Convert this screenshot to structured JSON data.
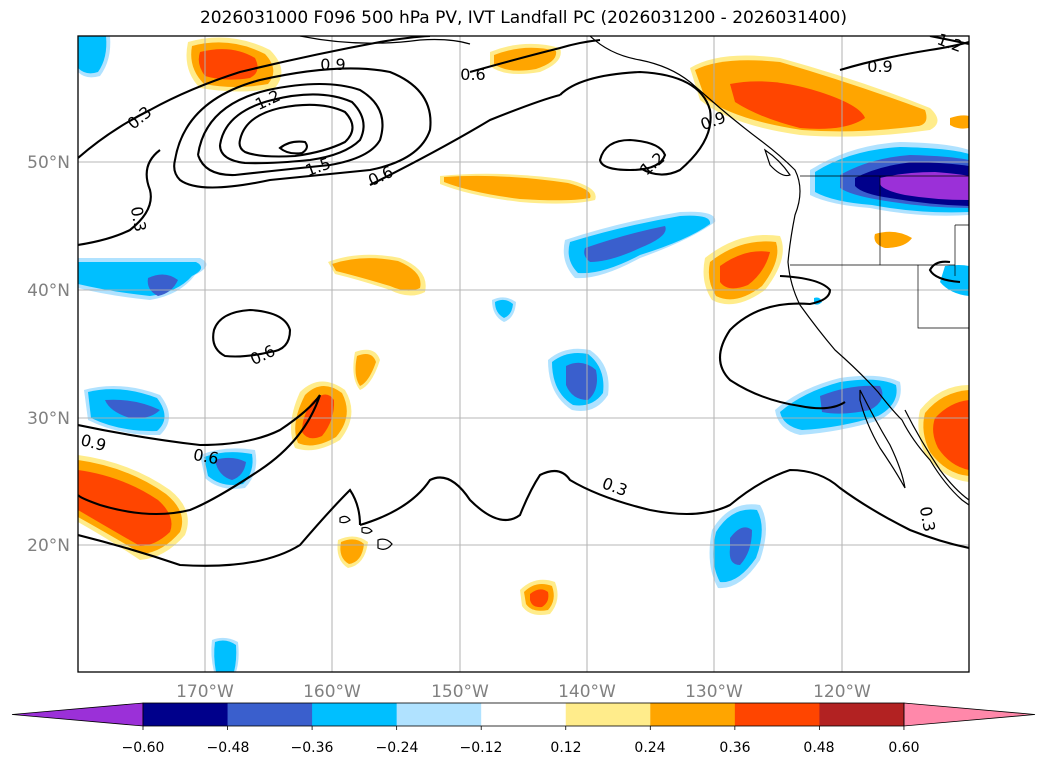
{
  "title": "2026031000 F096 500 hPa PV, IVT Landfall PC (2026031200 - 2026031400)",
  "axes": {
    "lat_labels": [
      "50°N",
      "40°N",
      "30°N",
      "20°N"
    ],
    "lon_labels": [
      "170°W",
      "160°W",
      "150°W",
      "140°W",
      "130°W",
      "120°W"
    ]
  },
  "colorbar": {
    "colors": [
      "#9b30d8",
      "#00008b",
      "#3a5fcd",
      "#00bfff",
      "#b0e2ff",
      "#ffffff",
      "#ffec8b",
      "#ffa500",
      "#ff4500",
      "#b22222",
      "#ff88aa"
    ],
    "tick_labels": [
      "−0.60",
      "−0.48",
      "−0.36",
      "−0.24",
      "−0.12",
      "0.12",
      "0.24",
      "0.36",
      "0.48",
      "0.60"
    ]
  },
  "contour_labels": [
    "0.3",
    "0.9",
    "0.6",
    "1.2",
    "1.5",
    "0.6",
    "0.3",
    "1.2",
    "0.9",
    "0.9",
    "0.9",
    "0.6",
    "0.6",
    "0.3",
    "0.3",
    "1.2"
  ],
  "map": {
    "land_color": "#ffffff",
    "coast_color": "#000000",
    "grid_color": "#b0b0b0",
    "contour_color": "#000000"
  }
}
